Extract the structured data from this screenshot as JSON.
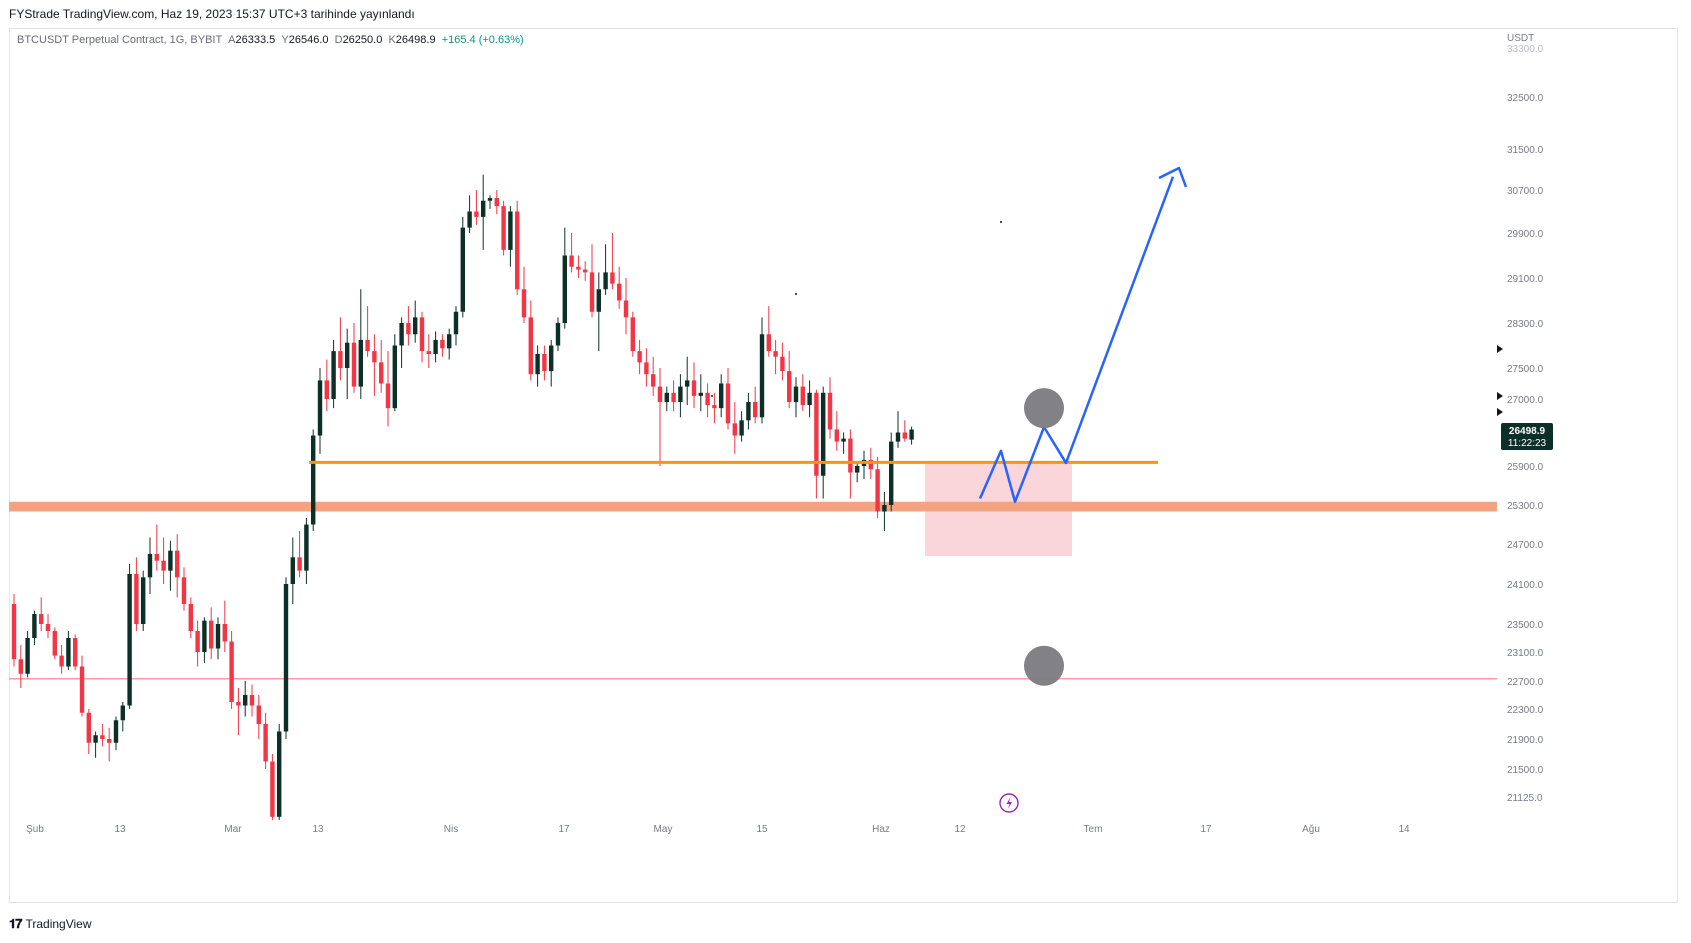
{
  "header": {
    "published": "FYStrade TradingView.com, Haz 19, 2023 15:37 UTC+3 tarihinde yayınlandı"
  },
  "legend": {
    "symbol": "BTCUSDT Perpetual Contract, 1G, BYBIT",
    "o_label": "A",
    "o": "26333.5",
    "h_label": "Y",
    "h": "26546.0",
    "l_label": "D",
    "l": "26250.0",
    "c_label": "K",
    "c": "26498.9",
    "change": "+165.4 (+0.63%)"
  },
  "footer": {
    "brand": "TradingView"
  },
  "colors": {
    "up": "#0c3027",
    "down": "#f23645",
    "support_line": "#f7931a",
    "support_band": "#f4a380",
    "zone": "#f8c8cf",
    "red_line": "#f77c80",
    "path": "#2962ff",
    "circle": "#7b7b80",
    "price_tag": "#0c3027"
  },
  "chart_data": {
    "type": "candlestick",
    "currency": "USDT",
    "y_ticks": [
      "33300.0",
      "32500.0",
      "31500.0",
      "30700.0",
      "29900.0",
      "29100.0",
      "28300.0",
      "27500.0",
      "27000.0",
      "25900.0",
      "25300.0",
      "24700.0",
      "24100.0",
      "23500.0",
      "23100.0",
      "22700.0",
      "22300.0",
      "21900.0",
      "21500.0",
      "21125.0"
    ],
    "x_ticks": [
      "Şub",
      "13",
      "Mar",
      "13",
      "Nis",
      "17",
      "May",
      "15",
      "Haz",
      "12",
      "Tem",
      "17",
      "Ağu",
      "14"
    ],
    "last_price": "26498.9",
    "countdown": "11:22:23",
    "candles_ohlc": [
      [
        23800,
        23950,
        22900,
        23000
      ],
      [
        23000,
        23200,
        22600,
        22800
      ],
      [
        22800,
        23400,
        22750,
        23300
      ],
      [
        23300,
        23700,
        23200,
        23650
      ],
      [
        23650,
        23900,
        23400,
        23500
      ],
      [
        23500,
        23650,
        23300,
        23400
      ],
      [
        23400,
        23450,
        23000,
        23050
      ],
      [
        23050,
        23200,
        22800,
        22900
      ],
      [
        22900,
        23400,
        22850,
        23300
      ],
      [
        23300,
        23350,
        22850,
        22900
      ],
      [
        22900,
        23050,
        22200,
        22250
      ],
      [
        22250,
        22300,
        21700,
        21850
      ],
      [
        21850,
        22000,
        21650,
        21950
      ],
      [
        21950,
        22100,
        21800,
        21900
      ],
      [
        21900,
        22050,
        21600,
        21850
      ],
      [
        21850,
        22200,
        21750,
        22150
      ],
      [
        22150,
        22400,
        22000,
        22350
      ],
      [
        22350,
        24400,
        22300,
        24250
      ],
      [
        24250,
        24500,
        23400,
        23500
      ],
      [
        23500,
        24300,
        23400,
        24200
      ],
      [
        24200,
        24800,
        23950,
        24550
      ],
      [
        24550,
        25000,
        24300,
        24450
      ],
      [
        24450,
        24800,
        24100,
        24300
      ],
      [
        24300,
        24750,
        24000,
        24600
      ],
      [
        24600,
        24850,
        23900,
        24200
      ],
      [
        24200,
        24350,
        23700,
        23800
      ],
      [
        23800,
        23900,
        23300,
        23400
      ],
      [
        23400,
        23550,
        22900,
        23100
      ],
      [
        23100,
        23600,
        22950,
        23550
      ],
      [
        23550,
        23750,
        23000,
        23150
      ],
      [
        23150,
        23600,
        23000,
        23500
      ],
      [
        23500,
        23850,
        23100,
        23250
      ],
      [
        23250,
        23400,
        22300,
        22400
      ],
      [
        22400,
        22600,
        21950,
        22350
      ],
      [
        22350,
        22700,
        22200,
        22500
      ],
      [
        22500,
        22650,
        22200,
        22350
      ],
      [
        22350,
        22500,
        21900,
        22100
      ],
      [
        22100,
        22250,
        21500,
        21600
      ],
      [
        21600,
        21700,
        20400,
        20500
      ],
      [
        20500,
        22100,
        20350,
        22000
      ],
      [
        22000,
        24200,
        21900,
        24100
      ],
      [
        24100,
        24800,
        23800,
        24500
      ],
      [
        24500,
        24900,
        24200,
        24300
      ],
      [
        24300,
        25100,
        24100,
        25000
      ],
      [
        25000,
        26500,
        24900,
        26400
      ],
      [
        26400,
        27500,
        26100,
        27300
      ],
      [
        27300,
        27650,
        26800,
        27000
      ],
      [
        27000,
        28000,
        26850,
        27800
      ],
      [
        27800,
        28400,
        27300,
        27500
      ],
      [
        27500,
        28200,
        27000,
        27950
      ],
      [
        27950,
        28300,
        27100,
        27200
      ],
      [
        27200,
        28900,
        27000,
        28000
      ],
      [
        28000,
        28600,
        27700,
        27800
      ],
      [
        27800,
        28100,
        27050,
        27600
      ],
      [
        27600,
        28000,
        27100,
        27250
      ],
      [
        27250,
        27800,
        26550,
        26850
      ],
      [
        26850,
        28100,
        26800,
        27900
      ],
      [
        27900,
        28400,
        27500,
        28300
      ],
      [
        28300,
        28600,
        27900,
        28100
      ],
      [
        28100,
        28700,
        27950,
        28400
      ],
      [
        28400,
        28500,
        27600,
        27800
      ],
      [
        27800,
        28100,
        27500,
        27750
      ],
      [
        27750,
        28150,
        27600,
        28000
      ],
      [
        28000,
        28100,
        27700,
        27850
      ],
      [
        27850,
        28200,
        27650,
        28100
      ],
      [
        28100,
        28600,
        27900,
        28500
      ],
      [
        28500,
        30200,
        28400,
        30000
      ],
      [
        30000,
        30600,
        29900,
        30300
      ],
      [
        30300,
        30700,
        30050,
        30200
      ],
      [
        30200,
        31000,
        29600,
        30500
      ],
      [
        30500,
        30600,
        30350,
        30550
      ],
      [
        30550,
        30700,
        30250,
        30400
      ],
      [
        30400,
        30500,
        29500,
        29600
      ],
      [
        29600,
        30400,
        29300,
        30300
      ],
      [
        30300,
        30500,
        28800,
        28900
      ],
      [
        28900,
        29300,
        28300,
        28400
      ],
      [
        28400,
        28700,
        27300,
        27400
      ],
      [
        27400,
        27900,
        27200,
        27750
      ],
      [
        27750,
        27900,
        27300,
        27450
      ],
      [
        27450,
        28000,
        27200,
        27900
      ],
      [
        27900,
        28400,
        27800,
        28300
      ],
      [
        28300,
        30000,
        28200,
        29500
      ],
      [
        29500,
        29900,
        29200,
        29300
      ],
      [
        29300,
        29500,
        29100,
        29250
      ],
      [
        29250,
        29400,
        29050,
        29200
      ],
      [
        29200,
        29700,
        28400,
        28500
      ],
      [
        28500,
        29200,
        27800,
        28900
      ],
      [
        28900,
        29700,
        28800,
        29200
      ],
      [
        29200,
        29900,
        28900,
        29000
      ],
      [
        29000,
        29300,
        28550,
        28700
      ],
      [
        28700,
        29100,
        28100,
        28400
      ],
      [
        28400,
        28500,
        27700,
        27800
      ],
      [
        27800,
        28000,
        27400,
        27600
      ],
      [
        27600,
        27850,
        27200,
        27400
      ],
      [
        27400,
        27700,
        27050,
        27200
      ],
      [
        27200,
        27500,
        25900,
        26950
      ],
      [
        26950,
        27200,
        26800,
        27100
      ],
      [
        27100,
        27300,
        26800,
        26950
      ],
      [
        26950,
        27400,
        26700,
        27200
      ],
      [
        27200,
        27700,
        26900,
        27300
      ],
      [
        27300,
        27600,
        26850,
        27050
      ],
      [
        27050,
        27400,
        26800,
        27100
      ],
      [
        27100,
        27250,
        26700,
        26900
      ],
      [
        26900,
        27100,
        26600,
        26850
      ],
      [
        26850,
        27400,
        26700,
        27250
      ],
      [
        27250,
        27500,
        26500,
        26600
      ],
      [
        26600,
        26950,
        26100,
        26400
      ],
      [
        26400,
        26800,
        26300,
        26650
      ],
      [
        26650,
        27100,
        26500,
        26950
      ],
      [
        26950,
        27200,
        26600,
        26700
      ],
      [
        26700,
        28400,
        26600,
        28100
      ],
      [
        28100,
        28600,
        27700,
        27800
      ],
      [
        27800,
        28000,
        27400,
        27700
      ],
      [
        27700,
        27950,
        27300,
        27450
      ],
      [
        27450,
        27800,
        26850,
        26950
      ],
      [
        26950,
        27350,
        26700,
        27200
      ],
      [
        27200,
        27400,
        26800,
        26900
      ],
      [
        26900,
        27300,
        26700,
        27100
      ],
      [
        27100,
        27150,
        25400,
        25750
      ],
      [
        25750,
        27200,
        25400,
        27100
      ],
      [
        27100,
        27350,
        26350,
        26500
      ],
      [
        26500,
        26800,
        26150,
        26300
      ],
      [
        26300,
        26450,
        26100,
        26350
      ],
      [
        26350,
        26500,
        25400,
        25800
      ],
      [
        25800,
        25950,
        25650,
        25900
      ],
      [
        25900,
        26150,
        25700,
        26000
      ],
      [
        26000,
        26200,
        25700,
        25850
      ],
      [
        25850,
        26050,
        25100,
        25200
      ],
      [
        25200,
        25500,
        24900,
        25300
      ],
      [
        25300,
        26450,
        25200,
        26300
      ],
      [
        26300,
        26800,
        26200,
        26450
      ],
      [
        26450,
        26650,
        26300,
        26350
      ],
      [
        26333.5,
        26546,
        26250,
        26498.9
      ]
    ],
    "levels": {
      "support_line": 25960,
      "support_band": [
        25200,
        25350
      ],
      "red_line": 22730,
      "zone": [
        24520,
        25960
      ]
    },
    "projection_path": [
      [
        25850,
        26150
      ],
      [
        25350,
        26540
      ],
      [
        25950,
        30960
      ]
    ],
    "circles": [
      26850,
      22910
    ]
  }
}
